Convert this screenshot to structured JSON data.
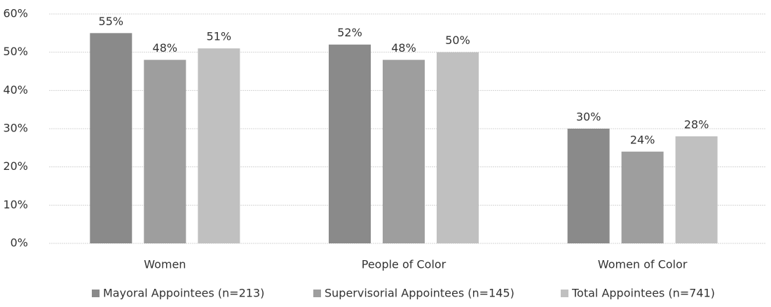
{
  "chart_data": {
    "type": "bar",
    "categories": [
      "Women",
      "People of Color",
      "Women of Color"
    ],
    "series": [
      {
        "name": "Mayoral Appointees (n=213)",
        "color": "#8a8a8a",
        "values": [
          55,
          52,
          30
        ],
        "value_labels": [
          "55%",
          "52%",
          "30%"
        ]
      },
      {
        "name": "Supervisorial Appointees (n=145)",
        "color": "#9e9e9e",
        "values": [
          48,
          48,
          24
        ],
        "value_labels": [
          "48%",
          "48%",
          "24%"
        ]
      },
      {
        "name": "Total Appointees (n=741)",
        "color": "#c0c0c0",
        "values": [
          51,
          50,
          28
        ],
        "value_labels": [
          "51%",
          "50%",
          "28%"
        ]
      }
    ],
    "ylim": [
      0,
      60
    ],
    "yticks": [
      {
        "value": 0,
        "label": "0%"
      },
      {
        "value": 10,
        "label": "10%"
      },
      {
        "value": 20,
        "label": "20%"
      },
      {
        "value": 30,
        "label": "30%"
      },
      {
        "value": 40,
        "label": "40%"
      },
      {
        "value": 50,
        "label": "50%"
      },
      {
        "value": 60,
        "label": "60%"
      }
    ],
    "grid": true,
    "legend": "bottom"
  }
}
